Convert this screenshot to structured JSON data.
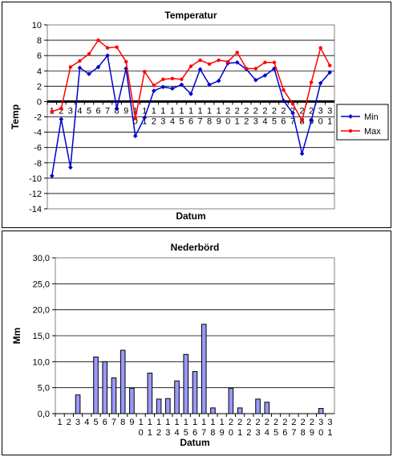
{
  "chart_data": [
    {
      "type": "line",
      "title": "Temperatur",
      "xlabel": "Datum",
      "ylabel": "Temp",
      "ylim": [
        -14,
        10
      ],
      "yticks": [
        10,
        8,
        6,
        4,
        2,
        0,
        -2,
        -4,
        -6,
        -8,
        -10,
        -12,
        -14
      ],
      "grid": true,
      "legend": "right",
      "x": [
        "1",
        "2",
        "3",
        "4",
        "5",
        "6",
        "7",
        "8",
        "9",
        "10",
        "11",
        "12",
        "13",
        "14",
        "15",
        "16",
        "17",
        "18",
        "19",
        "20",
        "21",
        "22",
        "23",
        "24",
        "25",
        "26",
        "27",
        "28",
        "29",
        "30",
        "31"
      ],
      "series": [
        {
          "name": "Min",
          "color": "#0000cc",
          "values": [
            -9.7,
            -2.3,
            -8.6,
            4.4,
            3.6,
            4.5,
            6.0,
            -0.9,
            4.3,
            -4.5,
            -2.1,
            1.4,
            1.9,
            1.7,
            2.2,
            1.0,
            4.2,
            2.2,
            2.7,
            5.0,
            5.1,
            4.2,
            2.8,
            3.4,
            4.3,
            0.1,
            -1.5,
            -6.8,
            -2.5,
            2.4,
            3.8
          ]
        },
        {
          "name": "Max",
          "color": "#ff0000",
          "values": [
            -1.3,
            -0.9,
            4.5,
            5.3,
            6.2,
            8.0,
            7.0,
            7.1,
            5.2,
            -2.2,
            3.9,
            2.1,
            2.9,
            3.0,
            2.9,
            4.6,
            5.4,
            4.9,
            5.4,
            5.2,
            6.4,
            4.3,
            4.3,
            5.1,
            5.1,
            1.5,
            -0.3,
            -2.5,
            2.5,
            7.0,
            4.7
          ]
        }
      ]
    },
    {
      "type": "bar",
      "title": "Nederbörd",
      "xlabel": "Datum",
      "ylabel": "Mm",
      "ylim": [
        0,
        30
      ],
      "yticks": [
        "30,0",
        "25,0",
        "20,0",
        "15,0",
        "10,0",
        "5,0",
        "0,0"
      ],
      "grid": true,
      "categories": [
        "1",
        "2",
        "3",
        "4",
        "5",
        "6",
        "7",
        "8",
        "9",
        "10",
        "11",
        "12",
        "13",
        "14",
        "15",
        "16",
        "17",
        "18",
        "19",
        "20",
        "21",
        "22",
        "23",
        "24",
        "25",
        "26",
        "27",
        "28",
        "29",
        "30",
        "31"
      ],
      "color": "#9999ff",
      "values": [
        0,
        0,
        3.6,
        0,
        10.9,
        10.0,
        6.9,
        12.2,
        4.9,
        0,
        7.8,
        2.8,
        2.9,
        6.3,
        11.4,
        8.1,
        17.2,
        1.1,
        0,
        4.9,
        1.1,
        0,
        2.8,
        2.2,
        0,
        0,
        0,
        0,
        0,
        1.0,
        0
      ]
    }
  ]
}
